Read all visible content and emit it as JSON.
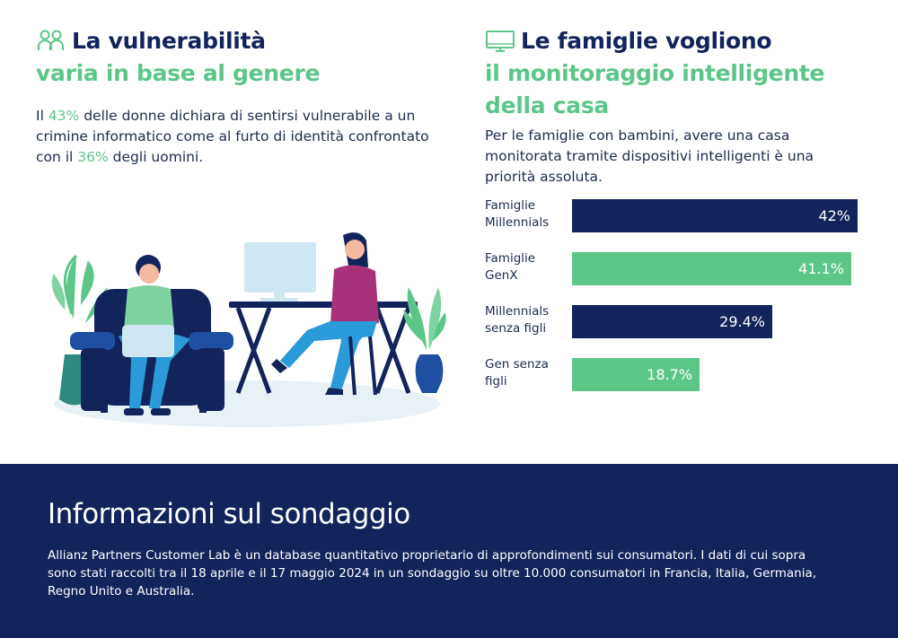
{
  "left": {
    "heading_line1": "La vulnerabilità",
    "heading_line2": "varia in base al genere",
    "para_prefix": "Il ",
    "women_pct": "43%",
    "para_mid": " delle donne dichiara di sentirsi vulnerabile a un crimine informatico come al furto di identità confrontato con il ",
    "men_pct": "36%",
    "para_suffix": " degli uomini."
  },
  "right": {
    "heading_line1": "Le famiglie vogliono",
    "heading_line2": "il monitoraggio intelligente",
    "heading_line3": "della casa",
    "paragraph": "Per le famiglie con bambini, avere una casa monitorata tramite dispositivi intelligenti è una priorità assoluta."
  },
  "chart_data": {
    "type": "bar",
    "orientation": "horizontal",
    "categories": [
      "Famiglie Millennials",
      "Famiglie GenX",
      "Millennials senza figli",
      "Gen senza figli"
    ],
    "category_lines": [
      [
        "Famiglie",
        "Millennials"
      ],
      [
        "Famiglie",
        "GenX"
      ],
      [
        "Millennials",
        "senza figli"
      ],
      [
        "Gen senza",
        "figli"
      ]
    ],
    "values": [
      42,
      41.1,
      29.4,
      18.7
    ],
    "value_labels": [
      "42%",
      "41.1%",
      "29.4%",
      "18.7%"
    ],
    "bar_colors": [
      "#13235b",
      "#5cc689",
      "#13235b",
      "#5cc689"
    ],
    "xlim": [
      0,
      42
    ]
  },
  "footer": {
    "title": "Informazioni sul sondaggio",
    "text": "Allianz Partners Customer Lab è un database quantitativo proprietario di approfondimenti sui consumatori. I dati di cui sopra sono stati raccolti tra il 18 aprile e il 17 maggio 2024 in un sondaggio su oltre 10.000 consumatori in Francia, Italia, Germania, Regno Unito e Australia."
  },
  "icons": {
    "left_heading": "people-icon",
    "right_heading": "monitor-icon"
  },
  "colors": {
    "navy": "#13235b",
    "green": "#5cc689",
    "teal": "#2e8a7e"
  }
}
